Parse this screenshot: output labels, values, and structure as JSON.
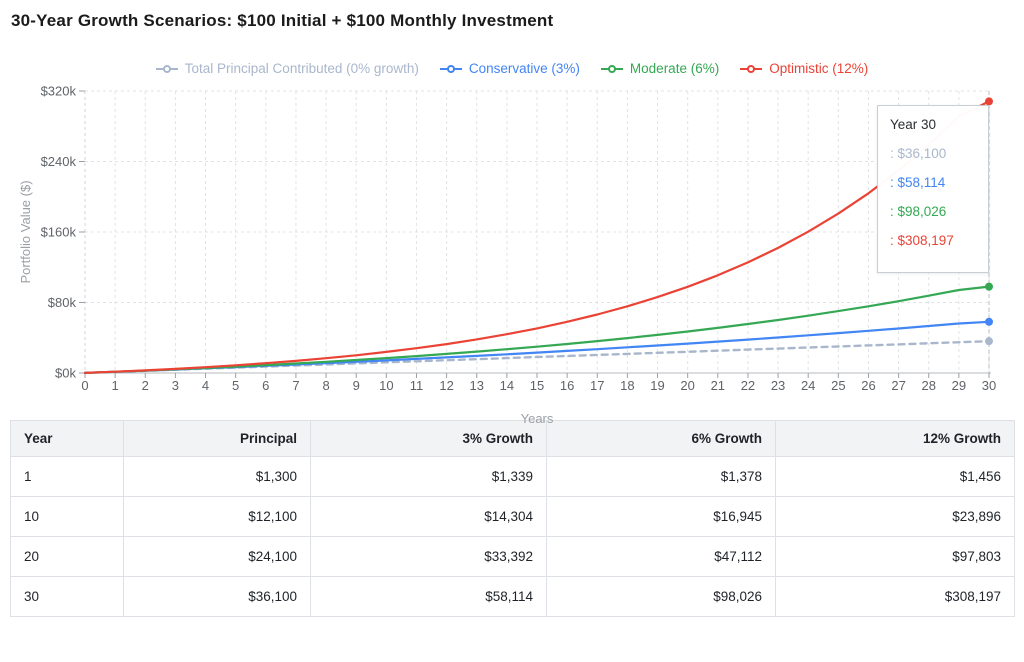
{
  "page": {
    "title": "30-Year Growth Scenarios: $100 Initial + $100 Monthly Investment"
  },
  "chart_data": {
    "type": "line",
    "xlabel": "Years",
    "ylabel": "Portfolio Value ($)",
    "x": [
      0,
      1,
      2,
      3,
      4,
      5,
      6,
      7,
      8,
      9,
      10,
      11,
      12,
      13,
      14,
      15,
      16,
      17,
      18,
      19,
      20,
      21,
      22,
      23,
      24,
      25,
      26,
      27,
      28,
      29,
      30
    ],
    "y_ticks": [
      {
        "value": 0,
        "label": "$0k"
      },
      {
        "value": 80000,
        "label": "$80k"
      },
      {
        "value": 160000,
        "label": "$160k"
      },
      {
        "value": 240000,
        "label": "$240k"
      },
      {
        "value": 320000,
        "label": "$320k"
      }
    ],
    "ylim": [
      0,
      320000
    ],
    "xlim": [
      0,
      30
    ],
    "grid": true,
    "legend_position": "top",
    "series": [
      {
        "name": "Total Principal Contributed (0% growth)",
        "color": "#a9b7cc",
        "dashed": true,
        "values": [
          100,
          1300,
          2500,
          3700,
          4900,
          6100,
          7300,
          8500,
          9700,
          10900,
          12100,
          13300,
          14500,
          15700,
          16900,
          18100,
          19300,
          20500,
          21700,
          22900,
          24100,
          25300,
          26500,
          27700,
          28900,
          30100,
          31300,
          32500,
          33700,
          34900,
          36100
        ]
      },
      {
        "name": "Conservative (3%)",
        "color": "#4285f4",
        "dashed": false,
        "values": [
          100,
          1339,
          2615,
          3930,
          5284,
          6678,
          8114,
          9594,
          11118,
          12687,
          14304,
          15969,
          17684,
          19450,
          21270,
          23144,
          25074,
          27063,
          29110,
          31220,
          33392,
          35630,
          37935,
          40309,
          42754,
          45273,
          47867,
          50539,
          53292,
          56126,
          58114
        ]
      },
      {
        "name": "Moderate (6%)",
        "color": "#34a853",
        "dashed": false,
        "values": [
          100,
          1378,
          2733,
          4169,
          5691,
          7304,
          9014,
          10827,
          12749,
          14786,
          16945,
          19234,
          21660,
          24231,
          26957,
          29847,
          32910,
          36156,
          39597,
          43245,
          47112,
          51211,
          55555,
          60161,
          65042,
          70217,
          75702,
          81516,
          87679,
          94212,
          98026
        ]
      },
      {
        "name": "Optimistic (12%)",
        "color": "#ea4335",
        "dashed": false,
        "values": [
          100,
          1456,
          2975,
          4676,
          6581,
          8714,
          11104,
          13781,
          16778,
          20136,
          23896,
          28108,
          32824,
          38107,
          44024,
          50651,
          58073,
          66386,
          75697,
          86124,
          97803,
          110883,
          125533,
          141941,
          160318,
          180901,
          203953,
          229771,
          258687,
          291074,
          308197
        ]
      }
    ],
    "tooltip": {
      "title": "Year 30",
      "x": 30,
      "items": [
        {
          "text": ": $36,100",
          "color": "#a9b7cc"
        },
        {
          "text": ": $58,114",
          "color": "#4285f4"
        },
        {
          "text": ": $98,026",
          "color": "#34a853"
        },
        {
          "text": ": $308,197",
          "color": "#ea4335"
        }
      ]
    }
  },
  "table": {
    "headers": [
      "Year",
      "Principal",
      "3% Growth",
      "6% Growth",
      "12% Growth"
    ],
    "rows": [
      [
        "1",
        "$1,300",
        "$1,339",
        "$1,378",
        "$1,456"
      ],
      [
        "10",
        "$12,100",
        "$14,304",
        "$16,945",
        "$23,896"
      ],
      [
        "20",
        "$24,100",
        "$33,392",
        "$47,112",
        "$97,803"
      ],
      [
        "30",
        "$36,100",
        "$58,114",
        "$98,026",
        "$308,197"
      ]
    ]
  },
  "style": {
    "grid_color": "#e0e3e7",
    "axis_color": "#b4bac0",
    "tick_text_color": "#5f6368",
    "axis_title_color": "#9aa0a6",
    "crosshair_color": "#b8bec6"
  }
}
